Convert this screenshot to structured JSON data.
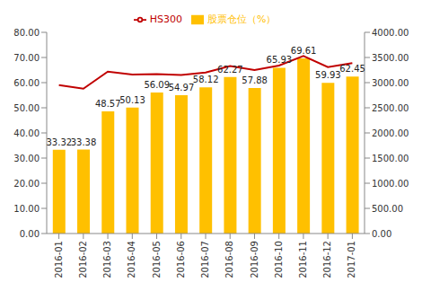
{
  "chart_data": {
    "type": "bar",
    "categories": [
      "2016-01",
      "2016-02",
      "2016-03",
      "2016-04",
      "2016-05",
      "2016-06",
      "2016-07",
      "2016-08",
      "2016-09",
      "2016-10",
      "2016-11",
      "2016-12",
      "2017-01"
    ],
    "series": [
      {
        "name": "股票仓位（%）",
        "type": "bar",
        "color": "#FFC000",
        "data_labels": true,
        "values": [
          33.32,
          33.38,
          48.57,
          50.13,
          56.09,
          54.97,
          58.12,
          62.27,
          57.88,
          65.93,
          69.61,
          59.93,
          62.45
        ]
      },
      {
        "name": "HS300",
        "type": "line",
        "color": "#C00000",
        "axis": "y2",
        "marker": "none",
        "values": [
          2950,
          2880,
          3220,
          3160,
          3170,
          3150,
          3200,
          3330,
          3250,
          3340,
          3530,
          3310,
          3390
        ]
      }
    ],
    "ylim": [
      0,
      80
    ],
    "yticks": [
      {
        "value": 0,
        "label": "0.00"
      },
      {
        "value": 10,
        "label": "10.00"
      },
      {
        "value": 20,
        "label": "20.00"
      },
      {
        "value": 30,
        "label": "30.00"
      },
      {
        "value": 40,
        "label": "40.00"
      },
      {
        "value": 50,
        "label": "50.00"
      },
      {
        "value": 60,
        "label": "60.00"
      },
      {
        "value": 70,
        "label": "70.00"
      },
      {
        "value": 80,
        "label": "80.00"
      }
    ],
    "y2lim": [
      0,
      4000
    ],
    "y2ticks": [
      {
        "value": 0,
        "label": "0.00"
      },
      {
        "value": 500,
        "label": "500.00"
      },
      {
        "value": 1000,
        "label": "1000.00"
      },
      {
        "value": 1500,
        "label": "1500.00"
      },
      {
        "value": 2000,
        "label": "2000.00"
      },
      {
        "value": 2500,
        "label": "2500.00"
      },
      {
        "value": 3000,
        "label": "3000.00"
      },
      {
        "value": 3500,
        "label": "3500.00"
      },
      {
        "value": 4000,
        "label": "4000.00"
      }
    ],
    "legend": "top",
    "grid": false
  }
}
